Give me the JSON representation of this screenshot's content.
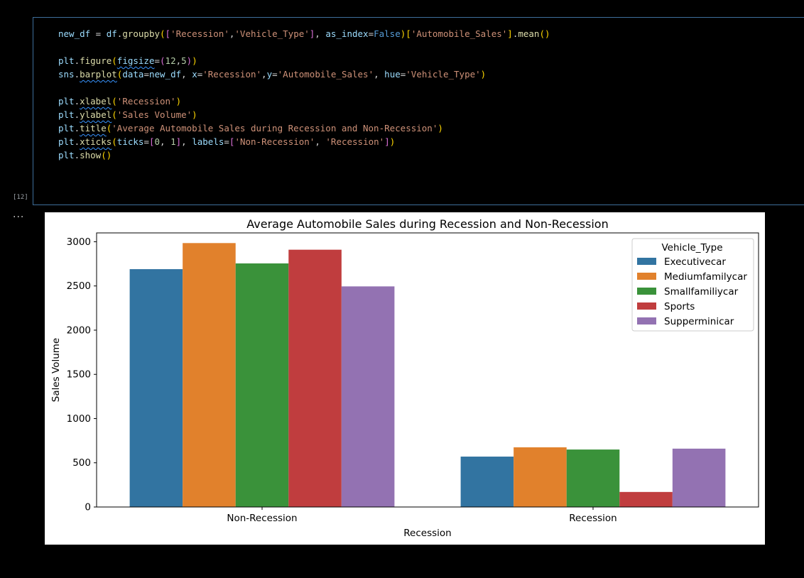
{
  "cell": {
    "execution_count": "[12]",
    "output_marker": "···"
  },
  "colors": {
    "background": "#000000",
    "cell_border": "#3e6e9a",
    "figure_background": "#ffffff"
  },
  "chart_data": {
    "type": "bar",
    "title": "Average Automobile Sales during Recession and Non-Recession",
    "xlabel": "Recession",
    "ylabel": "Sales Volume",
    "categories": [
      "Non-Recession",
      "Recession"
    ],
    "ylim": [
      0,
      3100
    ],
    "yticks": [
      0,
      500,
      1000,
      1500,
      2000,
      2500,
      3000
    ],
    "grid": false,
    "legend_title": "Vehicle_Type",
    "legend_position": "top-right",
    "series": [
      {
        "name": "Executivecar",
        "color": "#3274a1",
        "values": [
          2690,
          570
        ]
      },
      {
        "name": "Mediumfamilycar",
        "color": "#e1812c",
        "values": [
          2985,
          675
        ]
      },
      {
        "name": "Smallfamiliycar",
        "color": "#3a923a",
        "values": [
          2755,
          650
        ]
      },
      {
        "name": "Sports",
        "color": "#c03d3e",
        "values": [
          2910,
          170
        ]
      },
      {
        "name": "Supperminicar",
        "color": "#9372b2",
        "values": [
          2495,
          660
        ]
      }
    ]
  }
}
